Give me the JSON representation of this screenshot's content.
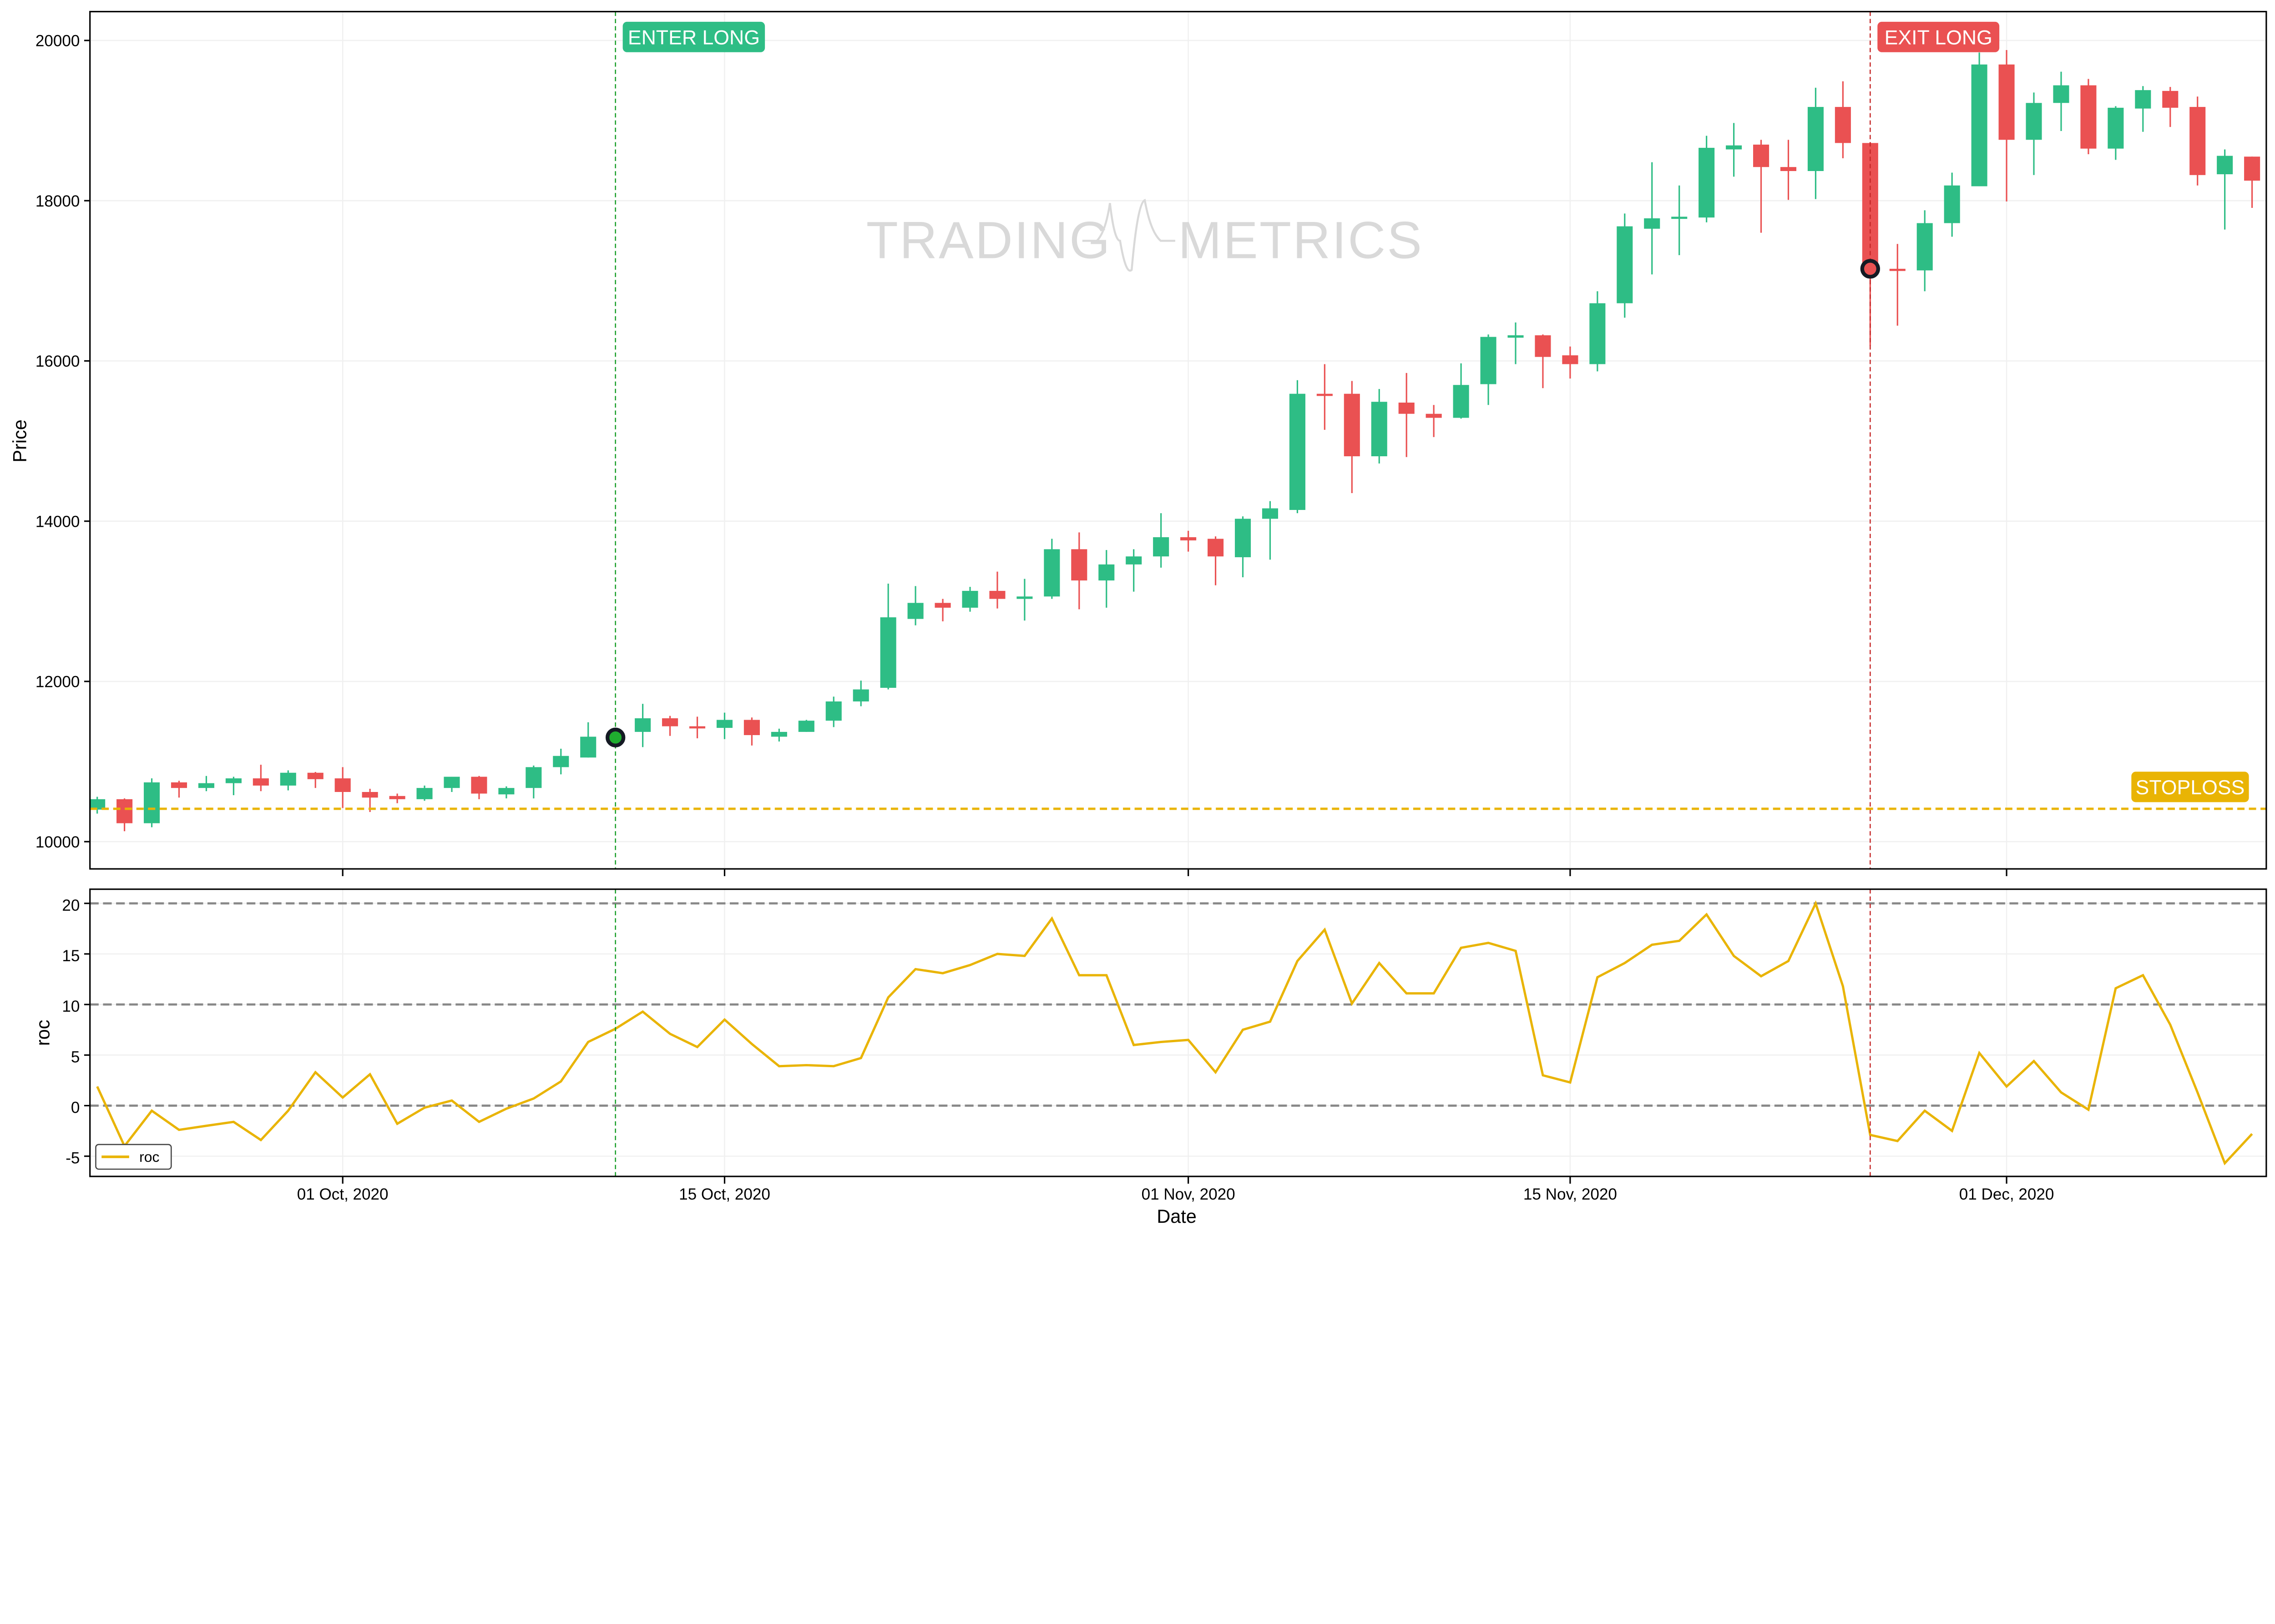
{
  "chart_data": [
    {
      "type": "candlestick",
      "ylabel": "Price",
      "xlabel": "",
      "ylim": [
        9660,
        20360
      ],
      "yticks": [
        "10000",
        "12000",
        "14000",
        "16000",
        "18000",
        "20000"
      ],
      "grid": true,
      "colors": {
        "up": "#2ebd85",
        "down": "#ea5152"
      },
      "watermark": {
        "left": "TRADING",
        "right": "METRICS"
      },
      "columns": [
        "date",
        "open",
        "high",
        "low",
        "close"
      ],
      "candles": [
        [
          "2020-09-22",
          10400,
          10560,
          10350,
          10530
        ],
        [
          "2020-09-23",
          10530,
          10540,
          10130,
          10230
        ],
        [
          "2020-09-24",
          10230,
          10790,
          10180,
          10740
        ],
        [
          "2020-09-25",
          10740,
          10760,
          10550,
          10670
        ],
        [
          "2020-09-26",
          10670,
          10820,
          10630,
          10730
        ],
        [
          "2020-09-27",
          10730,
          10810,
          10580,
          10790
        ],
        [
          "2020-09-28",
          10790,
          10960,
          10630,
          10700
        ],
        [
          "2020-09-29",
          10700,
          10890,
          10640,
          10860
        ],
        [
          "2020-09-30",
          10860,
          10870,
          10670,
          10780
        ],
        [
          "2020-10-01",
          10790,
          10930,
          10420,
          10620
        ],
        [
          "2020-10-02",
          10620,
          10660,
          10370,
          10550
        ],
        [
          "2020-10-03",
          10570,
          10600,
          10480,
          10530
        ],
        [
          "2020-10-04",
          10530,
          10700,
          10510,
          10670
        ],
        [
          "2020-10-05",
          10670,
          10810,
          10620,
          10810
        ],
        [
          "2020-10-06",
          10810,
          10820,
          10530,
          10600
        ],
        [
          "2020-10-07",
          10590,
          10690,
          10540,
          10670
        ],
        [
          "2020-10-08",
          10670,
          10950,
          10540,
          10930
        ],
        [
          "2020-10-09",
          10930,
          11160,
          10840,
          11070
        ],
        [
          "2020-10-10",
          11050,
          11490,
          11050,
          11310
        ],
        [
          "2020-10-11",
          11290,
          11340,
          11230,
          11300
        ],
        [
          "2020-10-12",
          11370,
          11720,
          11180,
          11540
        ],
        [
          "2020-10-13",
          11540,
          11570,
          11320,
          11440
        ],
        [
          "2020-10-14",
          11440,
          11560,
          11290,
          11420
        ],
        [
          "2020-10-15",
          11420,
          11610,
          11280,
          11520
        ],
        [
          "2020-10-16",
          11520,
          11550,
          11200,
          11330
        ],
        [
          "2020-10-17",
          11310,
          11410,
          11250,
          11370
        ],
        [
          "2020-10-18",
          11370,
          11520,
          11370,
          11510
        ],
        [
          "2020-10-19",
          11510,
          11810,
          11430,
          11750
        ],
        [
          "2020-10-20",
          11750,
          12010,
          11690,
          11900
        ],
        [
          "2020-10-21",
          11920,
          13220,
          11900,
          12800
        ],
        [
          "2020-10-22",
          12780,
          13190,
          12700,
          12980
        ],
        [
          "2020-10-23",
          12980,
          13030,
          12750,
          12920
        ],
        [
          "2020-10-24",
          12920,
          13180,
          12870,
          13130
        ],
        [
          "2020-10-25",
          13130,
          13370,
          12910,
          13030
        ],
        [
          "2020-10-26",
          13030,
          13280,
          12760,
          13060
        ],
        [
          "2020-10-27",
          13060,
          13780,
          13030,
          13650
        ],
        [
          "2020-10-28",
          13650,
          13860,
          12900,
          13260
        ],
        [
          "2020-10-29",
          13260,
          13640,
          12920,
          13460
        ],
        [
          "2020-10-30",
          13460,
          13650,
          13120,
          13560
        ],
        [
          "2020-10-31",
          13560,
          14100,
          13420,
          13800
        ],
        [
          "2020-11-01",
          13800,
          13880,
          13620,
          13760
        ],
        [
          "2020-11-02",
          13780,
          13810,
          13200,
          13560
        ],
        [
          "2020-11-03",
          13550,
          14060,
          13300,
          14030
        ],
        [
          "2020-11-04",
          14030,
          14250,
          13520,
          14160
        ],
        [
          "2020-11-05",
          14140,
          15760,
          14100,
          15590
        ],
        [
          "2020-11-06",
          15590,
          15960,
          15140,
          15570
        ],
        [
          "2020-11-07",
          15590,
          15750,
          14350,
          14810
        ],
        [
          "2020-11-08",
          14810,
          15650,
          14720,
          15490
        ],
        [
          "2020-11-09",
          15480,
          15850,
          14800,
          15340
        ],
        [
          "2020-11-10",
          15340,
          15450,
          15050,
          15290
        ],
        [
          "2020-11-11",
          15290,
          15970,
          15280,
          15700
        ],
        [
          "2020-11-12",
          15710,
          16330,
          15450,
          16300
        ],
        [
          "2020-11-13",
          16290,
          16480,
          15960,
          16320
        ],
        [
          "2020-11-14",
          16320,
          16330,
          15660,
          16050
        ],
        [
          "2020-11-15",
          16070,
          16180,
          15780,
          15960
        ],
        [
          "2020-11-16",
          15960,
          16870,
          15870,
          16720
        ],
        [
          "2020-11-17",
          16720,
          17840,
          16540,
          17680
        ],
        [
          "2020-11-18",
          17650,
          18480,
          17080,
          17780
        ],
        [
          "2020-11-19",
          17780,
          18190,
          17320,
          17800
        ],
        [
          "2020-11-20",
          17790,
          18810,
          17730,
          18660
        ],
        [
          "2020-11-21",
          18640,
          18970,
          18300,
          18690
        ],
        [
          "2020-11-22",
          18700,
          18760,
          17600,
          18420
        ],
        [
          "2020-11-23",
          18420,
          18760,
          18010,
          18370
        ],
        [
          "2020-11-24",
          18370,
          19410,
          18020,
          19170
        ],
        [
          "2020-11-25",
          19170,
          19490,
          18530,
          18720
        ],
        [
          "2020-11-26",
          18720,
          18730,
          16190,
          17130
        ],
        [
          "2020-11-27",
          17150,
          17460,
          16440,
          17130
        ],
        [
          "2020-11-28",
          17130,
          17880,
          16870,
          17720
        ],
        [
          "2020-11-29",
          17720,
          18350,
          17550,
          18190
        ],
        [
          "2020-11-30",
          18180,
          19850,
          18180,
          19700
        ],
        [
          "2020-12-01",
          19700,
          19880,
          17990,
          18760
        ],
        [
          "2020-12-02",
          18760,
          19350,
          18320,
          19220
        ],
        [
          "2020-12-03",
          19220,
          19610,
          18870,
          19440
        ],
        [
          "2020-12-04",
          19440,
          19520,
          18580,
          18650
        ],
        [
          "2020-12-05",
          18650,
          19180,
          18510,
          19160
        ],
        [
          "2020-12-06",
          19150,
          19430,
          18860,
          19380
        ],
        [
          "2020-12-07",
          19370,
          19420,
          18920,
          19160
        ],
        [
          "2020-12-08",
          19170,
          19300,
          18190,
          18320
        ],
        [
          "2020-12-09",
          18330,
          18640,
          17640,
          18560
        ],
        [
          "2020-12-10",
          18550,
          18550,
          17910,
          18250
        ]
      ],
      "signals": {
        "enter": {
          "label": "ENTER LONG",
          "date": "2020-10-11",
          "price": 11300,
          "color": "#2ebd85",
          "marker_color": "#1fae2f"
        },
        "exit": {
          "label": "EXIT LONG",
          "date": "2020-11-26",
          "price": 17150,
          "color": "#ea5152",
          "marker_color": "#ea5152"
        },
        "stoploss": {
          "label": "STOPLOSS",
          "price": 10410,
          "color": "#e9b404"
        }
      }
    },
    {
      "type": "line",
      "ylabel": "roc",
      "xlabel": "Date",
      "ylim": [
        -7,
        21.4
      ],
      "yticks": [
        "-5",
        "0",
        "5",
        "10",
        "15",
        "20"
      ],
      "xticks": [
        {
          "date": "2020-10-01",
          "label": "01 Oct, 2020"
        },
        {
          "date": "2020-10-15",
          "label": "15 Oct, 2020"
        },
        {
          "date": "2020-11-01",
          "label": "01 Nov, 2020"
        },
        {
          "date": "2020-11-15",
          "label": "15 Nov, 2020"
        },
        {
          "date": "2020-12-01",
          "label": "01 Dec, 2020"
        }
      ],
      "reference_lines": [
        0,
        10,
        20
      ],
      "legend": {
        "position": "bottom-left"
      },
      "series": [
        {
          "name": "roc",
          "color": "#e9b404",
          "values": [
            1.9,
            -4.0,
            -0.5,
            -2.4,
            -2.0,
            -1.6,
            -3.4,
            -0.5,
            3.3,
            0.8,
            3.1,
            -1.8,
            -0.2,
            0.5,
            -1.6,
            -0.3,
            0.7,
            2.4,
            6.3,
            7.6,
            9.3,
            7.1,
            5.8,
            8.5,
            6.1,
            3.9,
            4.0,
            3.9,
            4.7,
            10.7,
            13.5,
            13.1,
            13.9,
            15.0,
            14.8,
            18.5,
            12.9,
            12.9,
            6.0,
            6.3,
            6.5,
            3.3,
            7.5,
            8.3,
            14.3,
            17.4,
            10.1,
            14.1,
            11.1,
            11.1,
            15.6,
            16.1,
            15.3,
            3.0,
            2.3,
            12.7,
            14.1,
            15.9,
            16.3,
            18.9,
            14.8,
            12.8,
            14.3,
            20.0,
            11.8,
            -2.9,
            -3.5,
            -0.5,
            -2.5,
            5.2,
            1.9,
            4.4,
            1.3,
            -0.4,
            11.6,
            12.9,
            8.0,
            1.3,
            -5.7,
            -2.8
          ]
        }
      ]
    }
  ]
}
